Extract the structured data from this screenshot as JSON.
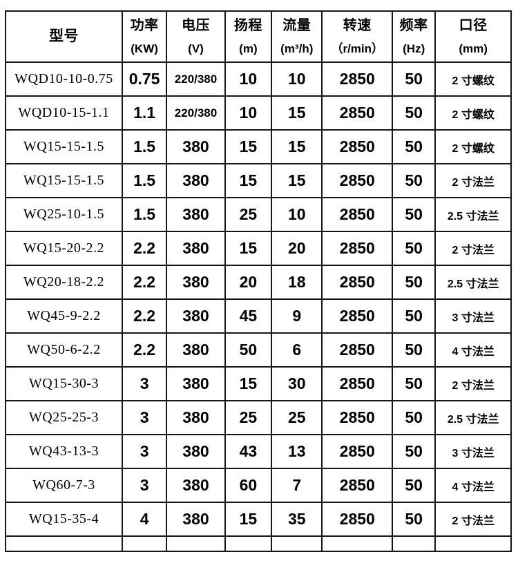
{
  "table": {
    "columns": [
      {
        "key": "model",
        "name": "型号",
        "unit": ""
      },
      {
        "key": "power",
        "name": "功率",
        "unit": "(KW)"
      },
      {
        "key": "voltage",
        "name": "电压",
        "unit": "(V)"
      },
      {
        "key": "head",
        "name": "扬程",
        "unit": "(m)"
      },
      {
        "key": "flow",
        "name": "流量",
        "unit": "(m³/h)"
      },
      {
        "key": "speed",
        "name": "转速",
        "unit": "（r/min）"
      },
      {
        "key": "frequency",
        "name": "频率",
        "unit": "(Hz)"
      },
      {
        "key": "caliber",
        "name": "口径",
        "unit": "(mm)"
      }
    ],
    "rows": [
      [
        "WQD10-10-0.75",
        "0.75",
        "220/380",
        "10",
        "10",
        "2850",
        "50",
        "2 寸螺纹"
      ],
      [
        "WQD10-15-1.1",
        "1.1",
        "220/380",
        "10",
        "15",
        "2850",
        "50",
        "2 寸螺纹"
      ],
      [
        "WQ15-15-1.5",
        "1.5",
        "380",
        "15",
        "15",
        "2850",
        "50",
        "2 寸螺纹"
      ],
      [
        "WQ15-15-1.5",
        "1.5",
        "380",
        "15",
        "15",
        "2850",
        "50",
        "2 寸法兰"
      ],
      [
        "WQ25-10-1.5",
        "1.5",
        "380",
        "25",
        "10",
        "2850",
        "50",
        "2.5 寸法兰"
      ],
      [
        "WQ15-20-2.2",
        "2.2",
        "380",
        "15",
        "20",
        "2850",
        "50",
        "2 寸法兰"
      ],
      [
        "WQ20-18-2.2",
        "2.2",
        "380",
        "20",
        "18",
        "2850",
        "50",
        "2.5 寸法兰"
      ],
      [
        "WQ45-9-2.2",
        "2.2",
        "380",
        "45",
        "9",
        "2850",
        "50",
        "3 寸法兰"
      ],
      [
        "WQ50-6-2.2",
        "2.2",
        "380",
        "50",
        "6",
        "2850",
        "50",
        "4 寸法兰"
      ],
      [
        "WQ15-30-3",
        "3",
        "380",
        "15",
        "30",
        "2850",
        "50",
        "2 寸法兰"
      ],
      [
        "WQ25-25-3",
        "3",
        "380",
        "25",
        "25",
        "2850",
        "50",
        "2.5 寸法兰"
      ],
      [
        "WQ43-13-3",
        "3",
        "380",
        "43",
        "13",
        "2850",
        "50",
        "3 寸法兰"
      ],
      [
        "WQ60-7-3",
        "3",
        "380",
        "60",
        "7",
        "2850",
        "50",
        "4 寸法兰"
      ],
      [
        "WQ15-35-4",
        "4",
        "380",
        "15",
        "35",
        "2850",
        "50",
        "2 寸法兰"
      ]
    ],
    "colors": {
      "border": "#161616",
      "text": "#000000",
      "background": "#ffffff"
    }
  }
}
